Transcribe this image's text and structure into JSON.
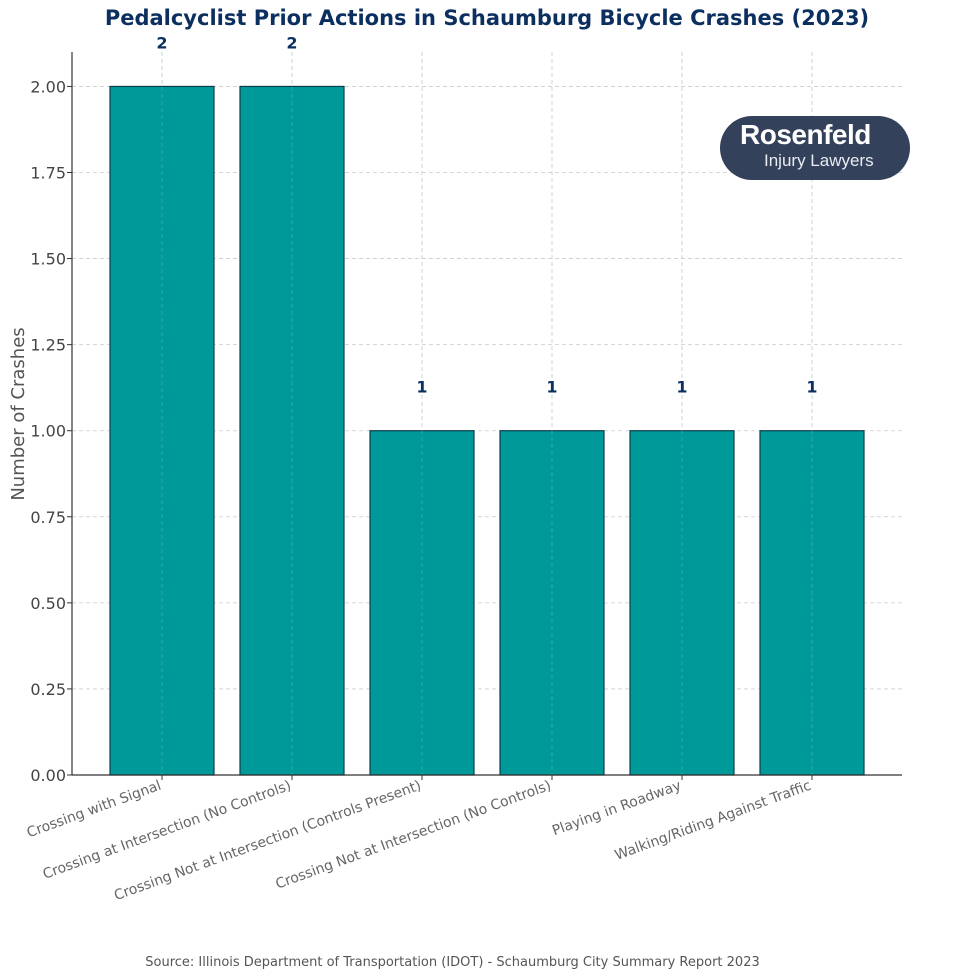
{
  "chart_data": {
    "type": "bar",
    "title": "Pedalcyclist Prior Actions in Schaumburg Bicycle Crashes (2023)",
    "xlabel": "",
    "ylabel": "Number of Crashes",
    "categories": [
      "Crossing with Signal",
      "Crossing at Intersection (No Controls)",
      "Crossing Not at Intersection (Controls Present)",
      "Crossing Not at Intersection (No Controls)",
      "Playing in Roadway",
      "Walking/Riding Against Traffic"
    ],
    "values": [
      2,
      2,
      1,
      1,
      1,
      1
    ],
    "data_labels": [
      "2",
      "2",
      "1",
      "1",
      "1",
      "1"
    ],
    "ylim": [
      0,
      2.1
    ],
    "yticks": [
      "0.00",
      "0.25",
      "0.50",
      "0.75",
      "1.00",
      "1.25",
      "1.50",
      "1.75",
      "2.00"
    ],
    "ytick_values": [
      0,
      0.25,
      0.5,
      0.75,
      1.0,
      1.25,
      1.5,
      1.75,
      2.0
    ],
    "grid": true,
    "colors": {
      "bar": "#009999",
      "bar_edge": "#0b3d4a",
      "title": "#0b2f5e",
      "data_label": "#0b2f5e",
      "tick_label": "#444444",
      "grid": "#cccccc",
      "axis": "#333333"
    }
  },
  "source": "Source: Illinois Department of Transportation (IDOT) - Schaumburg City Summary Report 2023",
  "logo": {
    "line1": "Rosenfeld",
    "line2": "Injury Lawyers",
    "background": "#34415a"
  }
}
